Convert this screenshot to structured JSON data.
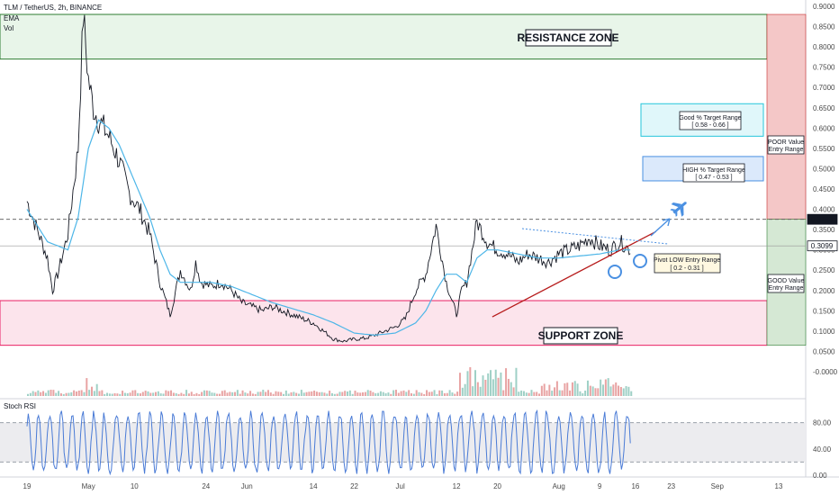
{
  "header": {
    "symbol": "TLM / TetherUS, 2h, BINANCE",
    "ema_label": "EMA",
    "vol_label": "Vol",
    "stoch_label": "Stoch RSI"
  },
  "colors": {
    "candle": "#131722",
    "ema": "#4db6e8",
    "resistance_fill": "#e8f5e9",
    "resistance_stroke": "#2e7d32",
    "support_fill": "#fce4ec",
    "support_stroke": "#e91e63",
    "target_good_fill": "#e0f7fa",
    "target_good_stroke": "#26c6da",
    "target_high_fill": "#dbe9fb",
    "target_high_stroke": "#4a90e2",
    "poor_fill": "#f4c7c7",
    "good_fill": "#d5e8d4",
    "trend_line": "#b71c1c",
    "arrow": "#4a90e2",
    "stoch": "#4a7bd6",
    "price_tag_dark": "#131722",
    "price_tag_light": "#ffffff"
  },
  "annotations": {
    "resistance_zone": "RESISTANCE ZONE",
    "support_zone": "SUPPORT ZONE",
    "good_target": [
      "Good % Target Range",
      "[ 0.58 - 0.66 ]"
    ],
    "high_target": [
      "HIGH % Target Range",
      "[ 0.47 - 0.53 ]"
    ],
    "pivot_entry": [
      "Pivot LOW Entry Range",
      "[ 0.2 - 0.31 ]"
    ],
    "poor_entry": [
      "POOR Value",
      "Entry Range"
    ],
    "good_entry": [
      "GOOD Value",
      "Entry Range"
    ],
    "airplane_icon": "airplane-icon"
  },
  "chart_data": {
    "type": "line",
    "title": "TLM / TetherUS, 2h, BINANCE",
    "xlabel": "",
    "ylabel": "",
    "ylim": [
      -0.02,
      0.9
    ],
    "grid": false,
    "y_ticks": [
      "0.9000",
      "0.8500",
      "0.8000",
      "0.7500",
      "0.7000",
      "0.6500",
      "0.6000",
      "0.5500",
      "0.5000",
      "0.4500",
      "0.4000",
      "0.3500",
      "0.3000",
      "0.2500",
      "0.2000",
      "0.1500",
      "0.1000",
      "0.0500",
      "-0.0000"
    ],
    "y_tick_values": [
      0.9,
      0.85,
      0.8,
      0.75,
      0.7,
      0.65,
      0.6,
      0.55,
      0.5,
      0.45,
      0.4,
      0.35,
      0.3,
      0.25,
      0.2,
      0.15,
      0.1,
      0.05,
      0.0
    ],
    "x_ticks": [
      {
        "label": "19",
        "day": 0
      },
      {
        "label": "May",
        "day": 12
      },
      {
        "label": "10",
        "day": 21
      },
      {
        "label": "24",
        "day": 35
      },
      {
        "label": "Jun",
        "day": 43
      },
      {
        "label": "14",
        "day": 56
      },
      {
        "label": "22",
        "day": 64
      },
      {
        "label": "Jul",
        "day": 73
      },
      {
        "label": "12",
        "day": 84
      },
      {
        "label": "20",
        "day": 92
      },
      {
        "label": "Aug",
        "day": 104
      },
      {
        "label": "9",
        "day": 112
      },
      {
        "label": "16",
        "day": 119
      },
      {
        "label": "23",
        "day": 126
      },
      {
        "label": "Sep",
        "day": 135
      },
      {
        "label": "13",
        "day": 147
      }
    ],
    "price_series": {
      "name": "",
      "day": [
        0,
        2,
        4,
        5,
        6,
        8,
        10,
        11,
        12,
        13,
        14,
        16,
        18,
        20,
        22,
        24,
        26,
        28,
        30,
        32,
        33,
        34,
        36,
        38,
        40,
        42,
        44,
        46,
        48,
        50,
        52,
        54,
        56,
        58,
        60,
        62,
        64,
        66,
        68,
        70,
        72,
        74,
        76,
        78,
        80,
        82,
        83,
        84,
        85,
        86,
        88,
        90,
        92,
        94,
        95,
        96,
        98,
        100,
        102,
        104,
        106,
        108,
        110,
        112,
        114,
        116,
        118
      ],
      "price": [
        0.42,
        0.35,
        0.28,
        0.2,
        0.24,
        0.34,
        0.55,
        0.88,
        0.72,
        0.65,
        0.62,
        0.58,
        0.52,
        0.44,
        0.4,
        0.34,
        0.22,
        0.14,
        0.25,
        0.2,
        0.27,
        0.22,
        0.21,
        0.22,
        0.2,
        0.17,
        0.16,
        0.15,
        0.16,
        0.15,
        0.14,
        0.13,
        0.12,
        0.1,
        0.08,
        0.075,
        0.08,
        0.082,
        0.09,
        0.1,
        0.11,
        0.13,
        0.2,
        0.24,
        0.36,
        0.22,
        0.18,
        0.14,
        0.2,
        0.22,
        0.37,
        0.32,
        0.3,
        0.29,
        0.28,
        0.27,
        0.29,
        0.28,
        0.27,
        0.29,
        0.3,
        0.31,
        0.33,
        0.31,
        0.3,
        0.32,
        0.3
      ]
    },
    "ema_series": {
      "name": "EMA",
      "day": [
        0,
        4,
        8,
        10,
        12,
        14,
        16,
        18,
        20,
        22,
        24,
        26,
        28,
        30,
        32,
        34,
        36,
        40,
        44,
        48,
        52,
        56,
        60,
        64,
        68,
        72,
        76,
        78,
        80,
        82,
        84,
        86,
        88,
        90,
        92,
        96,
        100,
        104,
        108,
        112,
        116,
        118
      ],
      "value": [
        0.4,
        0.32,
        0.3,
        0.38,
        0.55,
        0.62,
        0.6,
        0.56,
        0.5,
        0.44,
        0.38,
        0.3,
        0.24,
        0.22,
        0.22,
        0.22,
        0.22,
        0.21,
        0.19,
        0.17,
        0.155,
        0.14,
        0.12,
        0.095,
        0.09,
        0.095,
        0.12,
        0.15,
        0.2,
        0.24,
        0.24,
        0.22,
        0.28,
        0.3,
        0.3,
        0.29,
        0.28,
        0.28,
        0.285,
        0.29,
        0.3,
        0.3
      ]
    },
    "resistance_zone": [
      0.77,
      0.88
    ],
    "support_zone": [
      0.065,
      0.175
    ],
    "good_target_range": [
      0.58,
      0.66
    ],
    "high_target_range": [
      0.47,
      0.53
    ],
    "pivot_entry_range": [
      0.2,
      0.31
    ],
    "poor_value_range": [
      0.3753,
      0.88
    ],
    "good_value_range": [
      0.065,
      0.3753
    ],
    "dashed_level": 0.3753,
    "current_price": 0.3099,
    "price_labels": [
      "0.3753",
      "0.3099"
    ],
    "trend_line": {
      "day": [
        91,
        123
      ],
      "price": [
        0.135,
        0.345
      ]
    },
    "stoch_rsi": {
      "ylim": [
        0,
        100
      ],
      "y_ticks": [
        "80.00",
        "40.00",
        "0.00"
      ],
      "y_tick_values": [
        80,
        40,
        0
      ],
      "band": [
        20,
        80
      ]
    }
  }
}
